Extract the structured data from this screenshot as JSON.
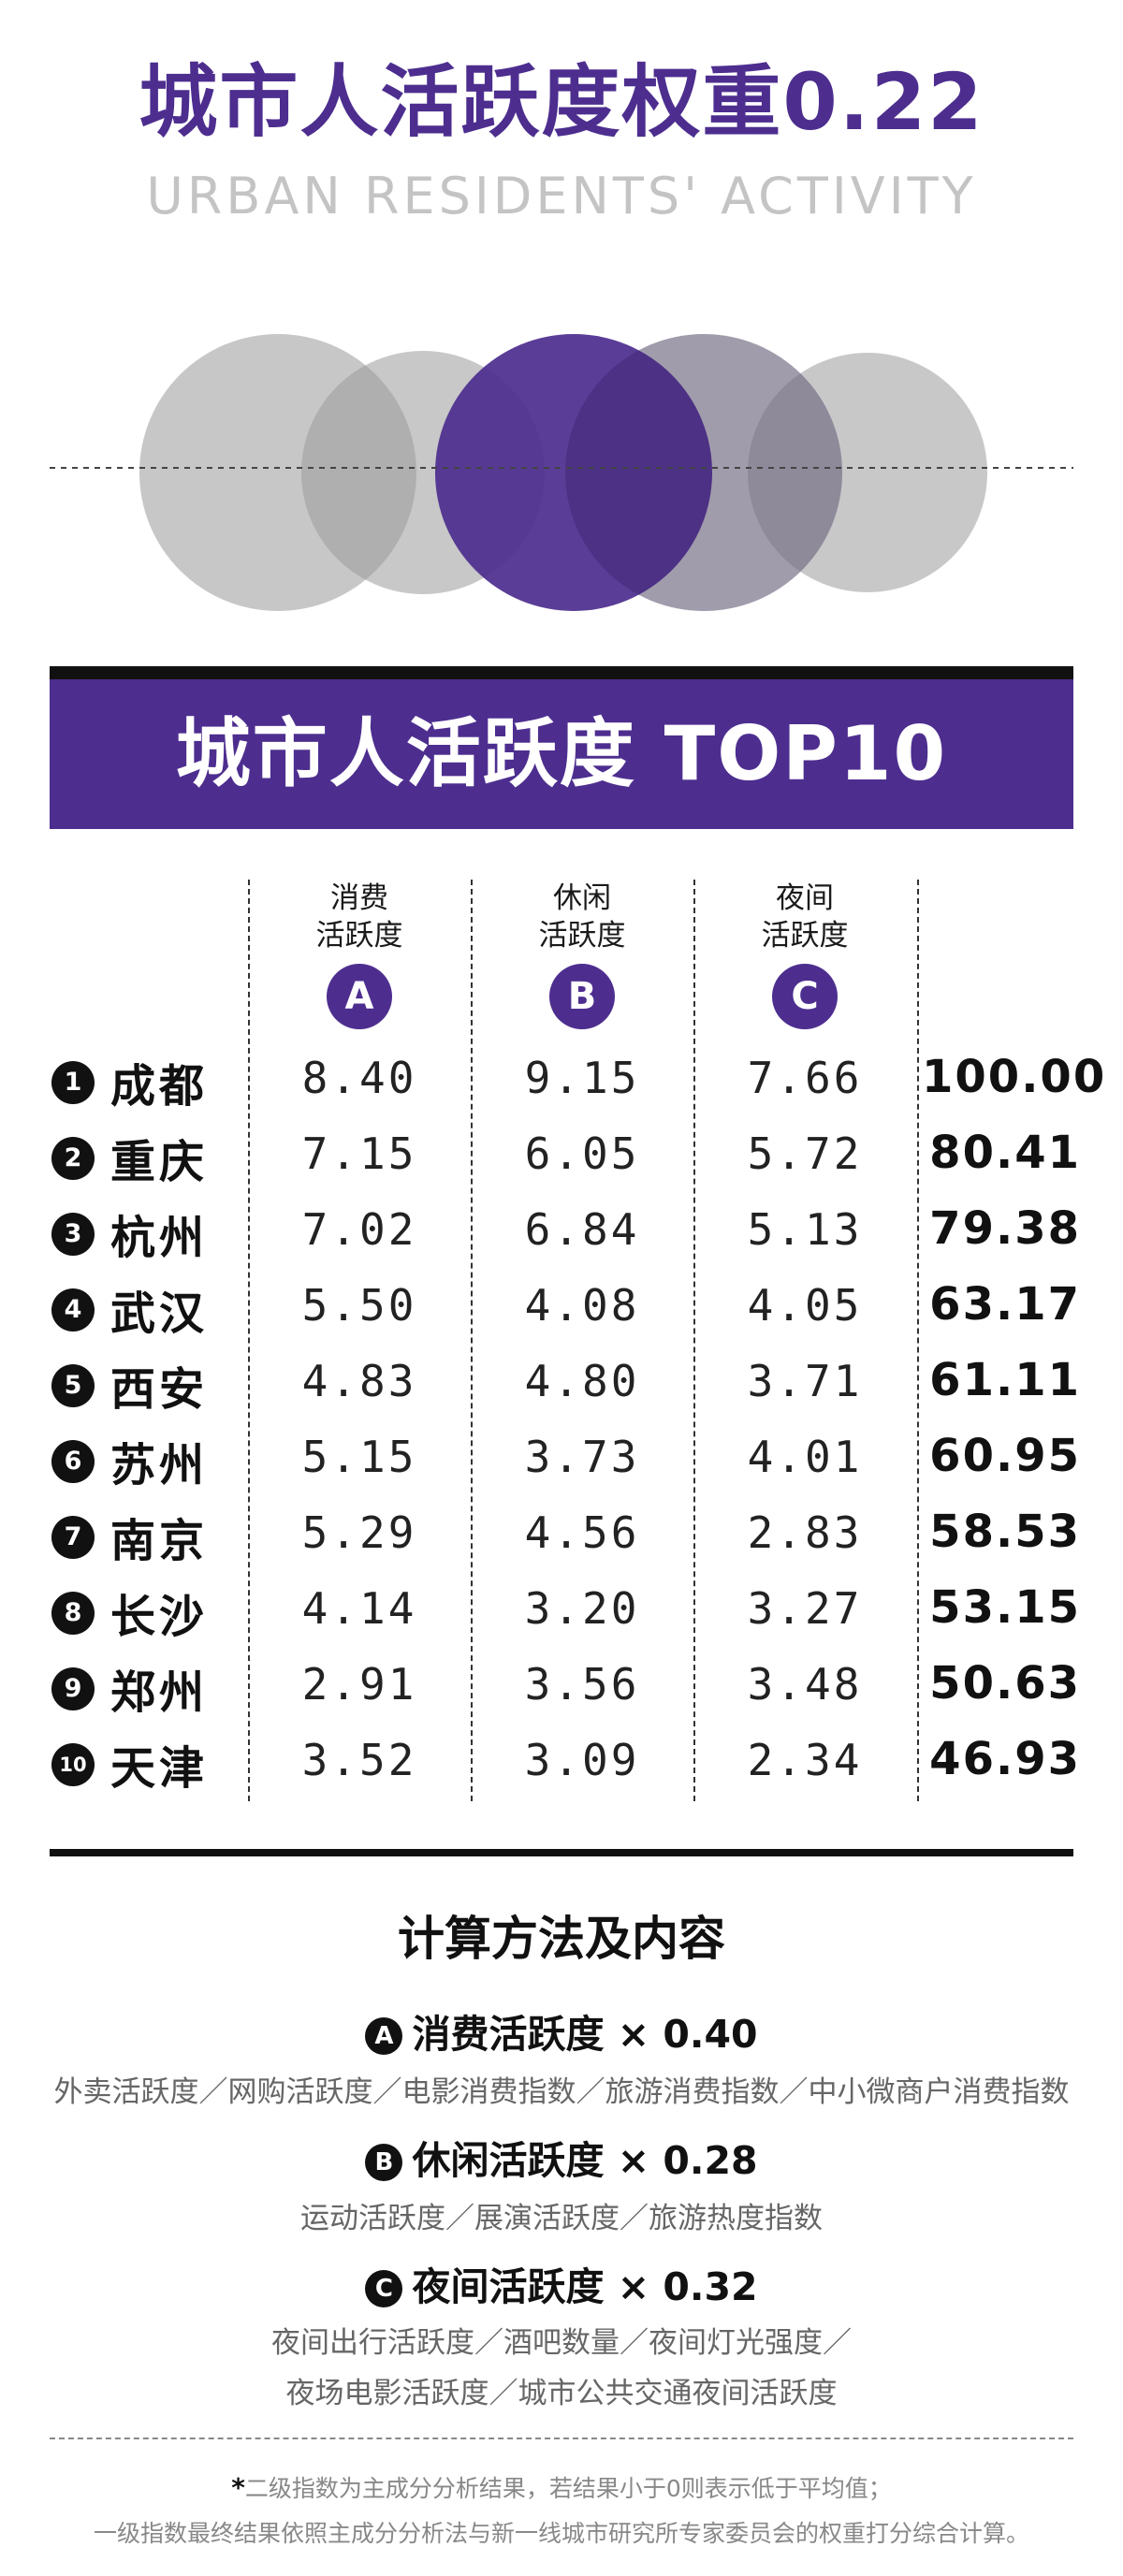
{
  "title": "城市人活跃度权重0.22",
  "subtitle": "URBAN RESIDENTS' ACTIVITY",
  "banner_title": "城市人活跃度 TOP10",
  "columns": [
    {
      "label_line1": "消费",
      "label_line2": "活跃度",
      "badge": "A"
    },
    {
      "label_line1": "休闲",
      "label_line2": "活跃度",
      "badge": "B"
    },
    {
      "label_line1": "夜间",
      "label_line2": "活跃度",
      "badge": "C"
    }
  ],
  "rows": [
    {
      "rank": "1",
      "city": "成都",
      "a": "8.40",
      "b": "9.15",
      "c": "7.66",
      "total": "100.00"
    },
    {
      "rank": "2",
      "city": "重庆",
      "a": "7.15",
      "b": "6.05",
      "c": "5.72",
      "total": "80.41"
    },
    {
      "rank": "3",
      "city": "杭州",
      "a": "7.02",
      "b": "6.84",
      "c": "5.13",
      "total": "79.38"
    },
    {
      "rank": "4",
      "city": "武汉",
      "a": "5.50",
      "b": "4.08",
      "c": "4.05",
      "total": "63.17"
    },
    {
      "rank": "5",
      "city": "西安",
      "a": "4.83",
      "b": "4.80",
      "c": "3.71",
      "total": "61.11"
    },
    {
      "rank": "6",
      "city": "苏州",
      "a": "5.15",
      "b": "3.73",
      "c": "4.01",
      "total": "60.95"
    },
    {
      "rank": "7",
      "city": "南京",
      "a": "5.29",
      "b": "4.56",
      "c": "2.83",
      "total": "58.53"
    },
    {
      "rank": "8",
      "city": "长沙",
      "a": "4.14",
      "b": "3.20",
      "c": "3.27",
      "total": "53.15"
    },
    {
      "rank": "9",
      "city": "郑州",
      "a": "2.91",
      "b": "3.56",
      "c": "3.48",
      "total": "50.63"
    },
    {
      "rank": "10",
      "city": "天津",
      "a": "3.52",
      "b": "3.09",
      "c": "2.34",
      "total": "46.93"
    }
  ],
  "method": {
    "title": "计算方法及内容",
    "sections": [
      {
        "mark": "A",
        "heading": "消费活跃度 × 0.40",
        "lines": [
          "外卖活跃度／网购活跃度／电影消费指数／旅游消费指数／中小微商户消费指数"
        ]
      },
      {
        "mark": "B",
        "heading": "休闲活跃度 × 0.28",
        "lines": [
          "运动活跃度／展演活跃度／旅游热度指数"
        ]
      },
      {
        "mark": "C",
        "heading": "夜间活跃度 × 0.32",
        "lines": [
          "夜间出行活跃度／酒吧数量／夜间灯光强度／",
          "夜场电影活跃度／城市公共交通夜间活跃度"
        ]
      }
    ]
  },
  "footnote": {
    "star": "*",
    "line1": "二级指数为主成分分析结果，若结果小于0则表示低于平均值；",
    "line2": "一级指数最终结果依照主成分分析法与新一线城市研究所专家委员会的权重打分综合计算。"
  },
  "colors": {
    "accent": "#4d2e8f",
    "circle_gray": "#bdbdbd",
    "text_dark": "#111111",
    "text_muted": "#666666"
  }
}
